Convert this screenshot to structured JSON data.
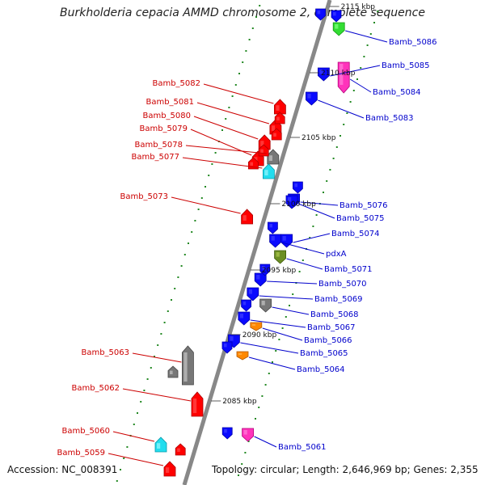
{
  "title": "Burkholderia cepacia AMMD chromosome 2, complete sequence",
  "accession": "Accession: NC_008391",
  "summary": "Topology: circular; Length: 2,646,969 bp; Genes: 2,355",
  "colors": {
    "forward_label": "#0000cc",
    "reverse_label": "#cc0000",
    "backbone": "#888888",
    "tick": "#228822"
  },
  "kbp_markers": [
    "2115 kbp",
    "2110 kbp",
    "2105 kbp",
    "2100 kbp",
    "2095 kbp",
    "2090 kbp",
    "2085 kbp"
  ],
  "forward_genes": [
    {
      "name": "Bamb_5086",
      "color": "green"
    },
    {
      "name": "Bamb_5085",
      "color": "blue"
    },
    {
      "name": "Bamb_5084",
      "color": "magenta"
    },
    {
      "name": "Bamb_5083",
      "color": "blue"
    },
    {
      "name": "Bamb_5076",
      "color": "blue"
    },
    {
      "name": "Bamb_5075",
      "color": "blue"
    },
    {
      "name": "Bamb_5074",
      "color": "blue"
    },
    {
      "name": "pdxA",
      "color": "blue"
    },
    {
      "name": "Bamb_5071",
      "color": "olive"
    },
    {
      "name": "Bamb_5070",
      "color": "blue"
    },
    {
      "name": "Bamb_5069",
      "color": "blue"
    },
    {
      "name": "Bamb_5068",
      "color": "gray"
    },
    {
      "name": "Bamb_5067",
      "color": "blue"
    },
    {
      "name": "Bamb_5066",
      "color": "orange"
    },
    {
      "name": "Bamb_5065",
      "color": "blue"
    },
    {
      "name": "Bamb_5064",
      "color": "orange"
    },
    {
      "name": "Bamb_5061",
      "color": "magenta"
    }
  ],
  "reverse_genes": [
    {
      "name": "Bamb_5082",
      "color": "red"
    },
    {
      "name": "Bamb_5081",
      "color": "red"
    },
    {
      "name": "Bamb_5080",
      "color": "red"
    },
    {
      "name": "Bamb_5079",
      "color": "red"
    },
    {
      "name": "Bamb_5078",
      "color": "gray"
    },
    {
      "name": "Bamb_5077",
      "color": "cyan"
    },
    {
      "name": "Bamb_5073",
      "color": "red"
    },
    {
      "name": "Bamb_5063",
      "color": "gray"
    },
    {
      "name": "Bamb_5062",
      "color": "red"
    },
    {
      "name": "Bamb_5060",
      "color": "cyan"
    },
    {
      "name": "Bamb_5059",
      "color": "red"
    }
  ]
}
